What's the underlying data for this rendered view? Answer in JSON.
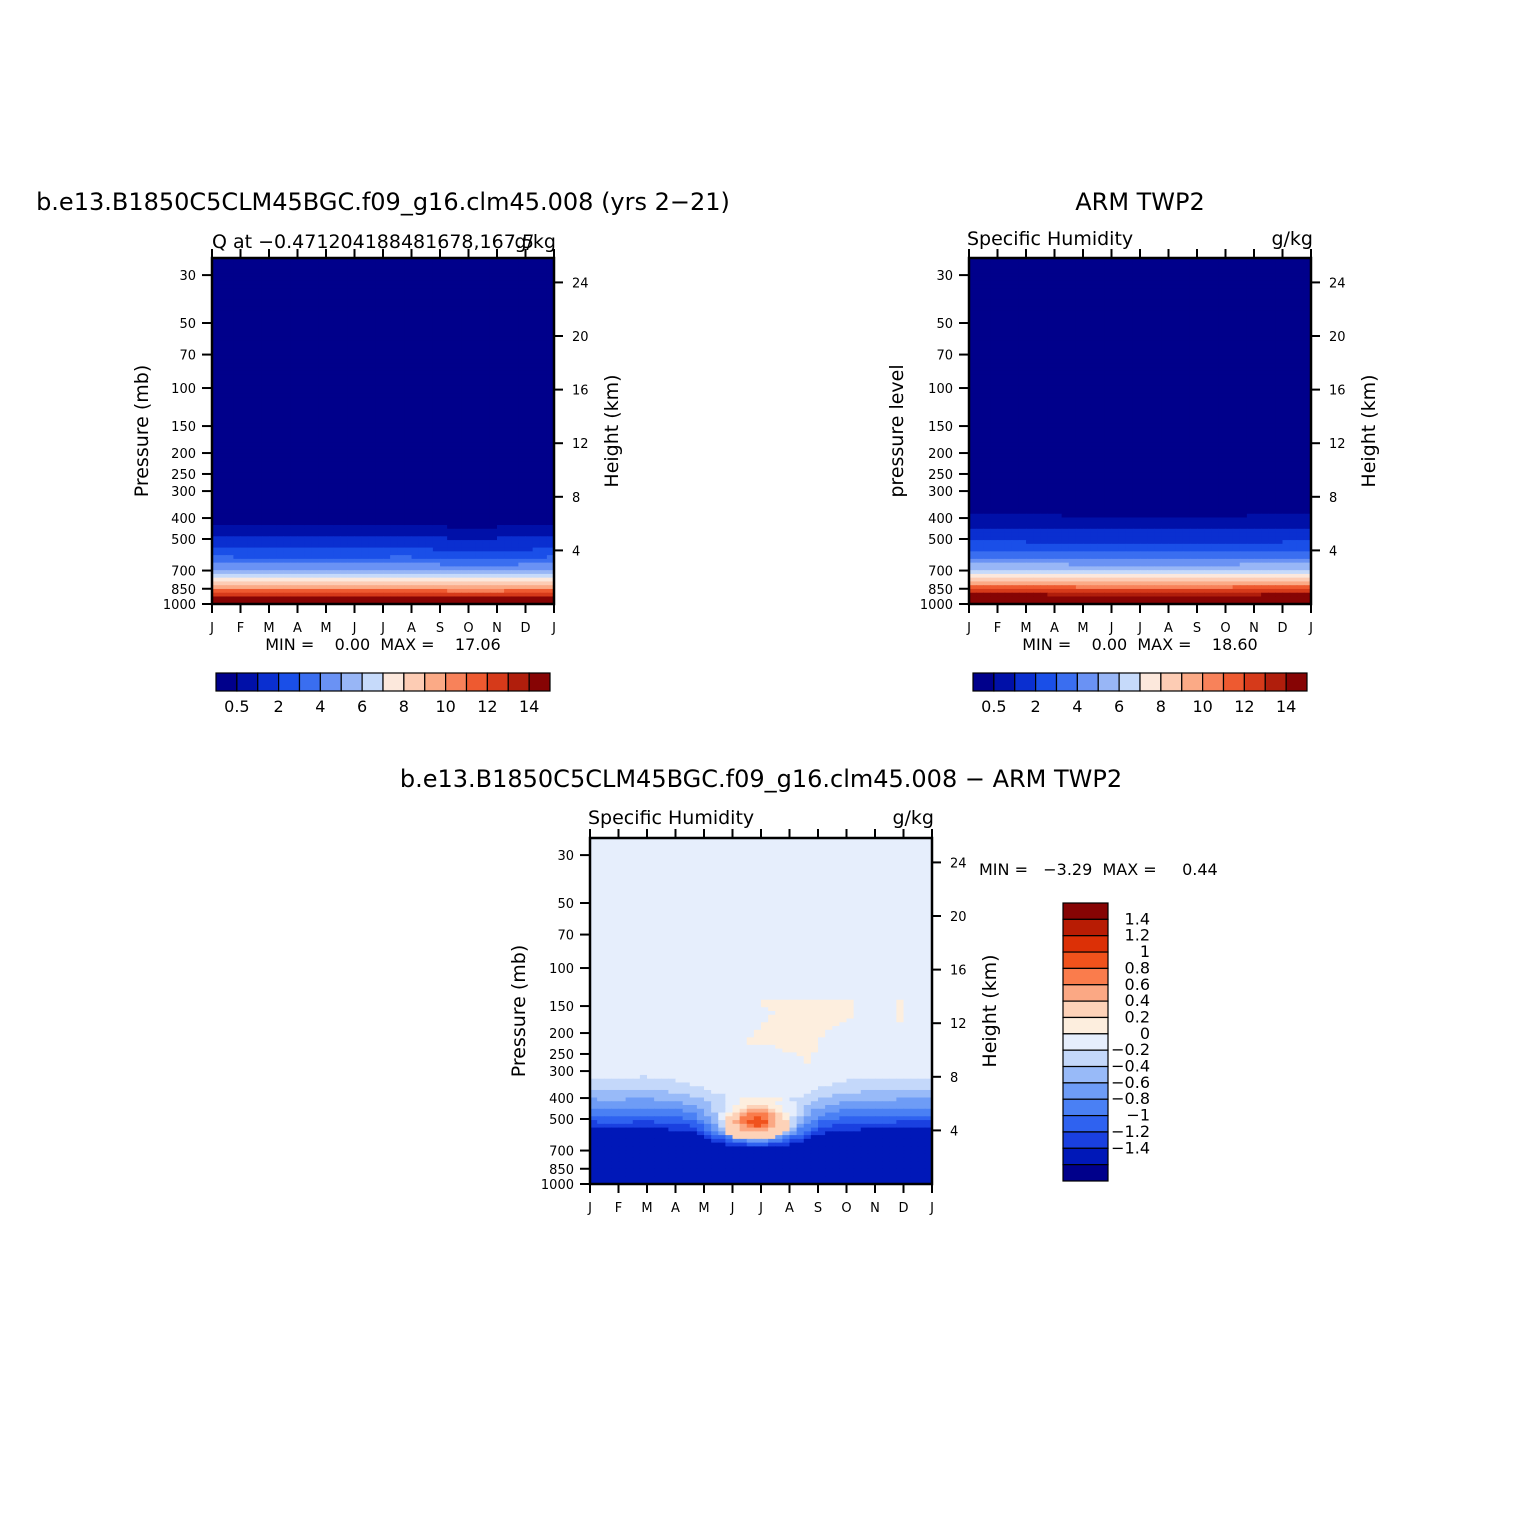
{
  "colors": {
    "abs_palette": [
      "#00008b",
      "#0010a8",
      "#0a2fd0",
      "#1a4fe8",
      "#3a6ef0",
      "#6a92f4",
      "#98b6f6",
      "#c6dafa",
      "#fce8dc",
      "#fdccb4",
      "#fbaa86",
      "#f8825a",
      "#ee5a30",
      "#d63a1a",
      "#b01e0c",
      "#860404"
    ],
    "diff_palette": [
      "#00008b",
      "#0018b8",
      "#1a40e0",
      "#2f62f0",
      "#4a80f4",
      "#6e9cf6",
      "#98baf8",
      "#c4d8fa",
      "#e6eefc",
      "#fdeede",
      "#fdd2b8",
      "#fba884",
      "#fa7c4c",
      "#f0521c",
      "#dc3006",
      "#b81c04",
      "#860404"
    ]
  },
  "chart_data": [
    {
      "id": "model",
      "type": "heatmap",
      "title": "b.e13.B1850C5CLM45BGC.f09_g16.clm45.008 (yrs 2−21)",
      "subtitle_left": "Q at −0.471204188481678,167.5",
      "subtitle_right": "g/kg",
      "ylabel": "Pressure (mb)",
      "ylabel_right": "Height (km)",
      "x_tick_labels": [
        "J",
        "F",
        "M",
        "A",
        "M",
        "J",
        "J",
        "A",
        "S",
        "O",
        "N",
        "D",
        "J"
      ],
      "y_ticks": [
        30,
        50,
        70,
        100,
        150,
        200,
        250,
        300,
        400,
        500,
        700,
        850,
        1000
      ],
      "y_right_ticks": [
        24,
        20,
        16,
        12,
        8,
        4
      ],
      "y_scale": "log",
      "ylim": [
        1000,
        25
      ],
      "minmax_text": "MIN =    0.00  MAX =    17.06",
      "colorbar_levels": [
        0.5,
        1,
        2,
        3,
        4,
        5,
        6,
        7,
        8,
        9,
        10,
        11,
        12,
        13,
        14
      ],
      "colorbar_labels": [
        "0.5",
        "2",
        "4",
        "6",
        "8",
        "10",
        "12",
        "14"
      ],
      "surface_value": 17.06,
      "moist_top_pressure": [
        360,
        362,
        362,
        364,
        366,
        364,
        362,
        360,
        375,
        392,
        380,
        372,
        360
      ]
    },
    {
      "id": "obs",
      "type": "heatmap",
      "title": "ARM TWP2",
      "subtitle_left": "Specific Humidity",
      "subtitle_right": "g/kg",
      "ylabel": "pressure level",
      "ylabel_right": "Height (km)",
      "x_tick_labels": [
        "J",
        "F",
        "M",
        "A",
        "M",
        "J",
        "J",
        "A",
        "S",
        "O",
        "N",
        "D",
        "J"
      ],
      "y_ticks": [
        30,
        50,
        70,
        100,
        150,
        200,
        250,
        300,
        400,
        500,
        700,
        850,
        1000
      ],
      "y_right_ticks": [
        24,
        20,
        16,
        12,
        8,
        4
      ],
      "y_scale": "log",
      "ylim": [
        1000,
        25
      ],
      "minmax_text": "MIN =    0.00  MAX =    18.60",
      "colorbar_levels": [
        0.5,
        1,
        2,
        3,
        4,
        5,
        6,
        7,
        8,
        9,
        10,
        11,
        12,
        13,
        14
      ],
      "colorbar_labels": [
        "0.5",
        "2",
        "4",
        "6",
        "8",
        "10",
        "12",
        "14"
      ],
      "surface_value": 18.6,
      "moist_top_pressure": [
        318,
        320,
        322,
        326,
        330,
        334,
        334,
        333,
        336,
        330,
        326,
        322,
        318
      ]
    },
    {
      "id": "diff",
      "type": "heatmap",
      "title": "b.e13.B1850C5CLM45BGC.f09_g16.clm45.008 − ARM TWP2",
      "subtitle_left": "Specific Humidity",
      "subtitle_right": "g/kg",
      "ylabel": "Pressure (mb)",
      "ylabel_right": "Height (km)",
      "x_tick_labels": [
        "J",
        "F",
        "M",
        "A",
        "M",
        "J",
        "J",
        "A",
        "S",
        "O",
        "N",
        "D",
        "J"
      ],
      "y_ticks": [
        30,
        50,
        70,
        100,
        150,
        200,
        250,
        300,
        400,
        500,
        700,
        850,
        1000
      ],
      "y_right_ticks": [
        24,
        20,
        16,
        12,
        8,
        4
      ],
      "y_scale": "log",
      "ylim": [
        1000,
        25
      ],
      "minmax_text": "MIN =   −3.29  MAX =     0.44",
      "colorbar_levels": [
        -1.4,
        -1.2,
        -1,
        -0.8,
        -0.6,
        -0.4,
        -0.2,
        0,
        0.2,
        0.4,
        0.6,
        0.8,
        1,
        1.2,
        1.4
      ],
      "colorbar_labels": [
        "1.4",
        "1.2",
        "1",
        "0.8",
        "0.6",
        "0.4",
        "0.2",
        "0",
        "−0.2",
        "−0.4",
        "−0.6",
        "−0.8",
        "−1",
        "−1.2",
        "−1.4"
      ],
      "background_value": -0.1,
      "dry_top_pressure": [
        320,
        322,
        318,
        330,
        360,
        400,
        420,
        410,
        360,
        330,
        322,
        320,
        320
      ],
      "moist_anomaly_center": {
        "month": 5.8,
        "pressure": 530,
        "peak_value": 0.44
      },
      "upper_positive_region": [
        {
          "month": 5.8,
          "pressure": 140
        },
        {
          "month": 9.3,
          "pressure": 140
        },
        {
          "month": 9.3,
          "pressure": 170
        },
        {
          "month": 8.2,
          "pressure": 200
        },
        {
          "month": 7.7,
          "pressure": 280
        },
        {
          "month": 7.2,
          "pressure": 250
        },
        {
          "month": 6.0,
          "pressure": 220
        },
        {
          "month": 5.5,
          "pressure": 230
        },
        {
          "month": 5.7,
          "pressure": 200
        },
        {
          "month": 6.5,
          "pressure": 160
        }
      ],
      "small_positive_region": {
        "month": 10.9,
        "pressure": 160,
        "value": 0.1
      }
    }
  ]
}
